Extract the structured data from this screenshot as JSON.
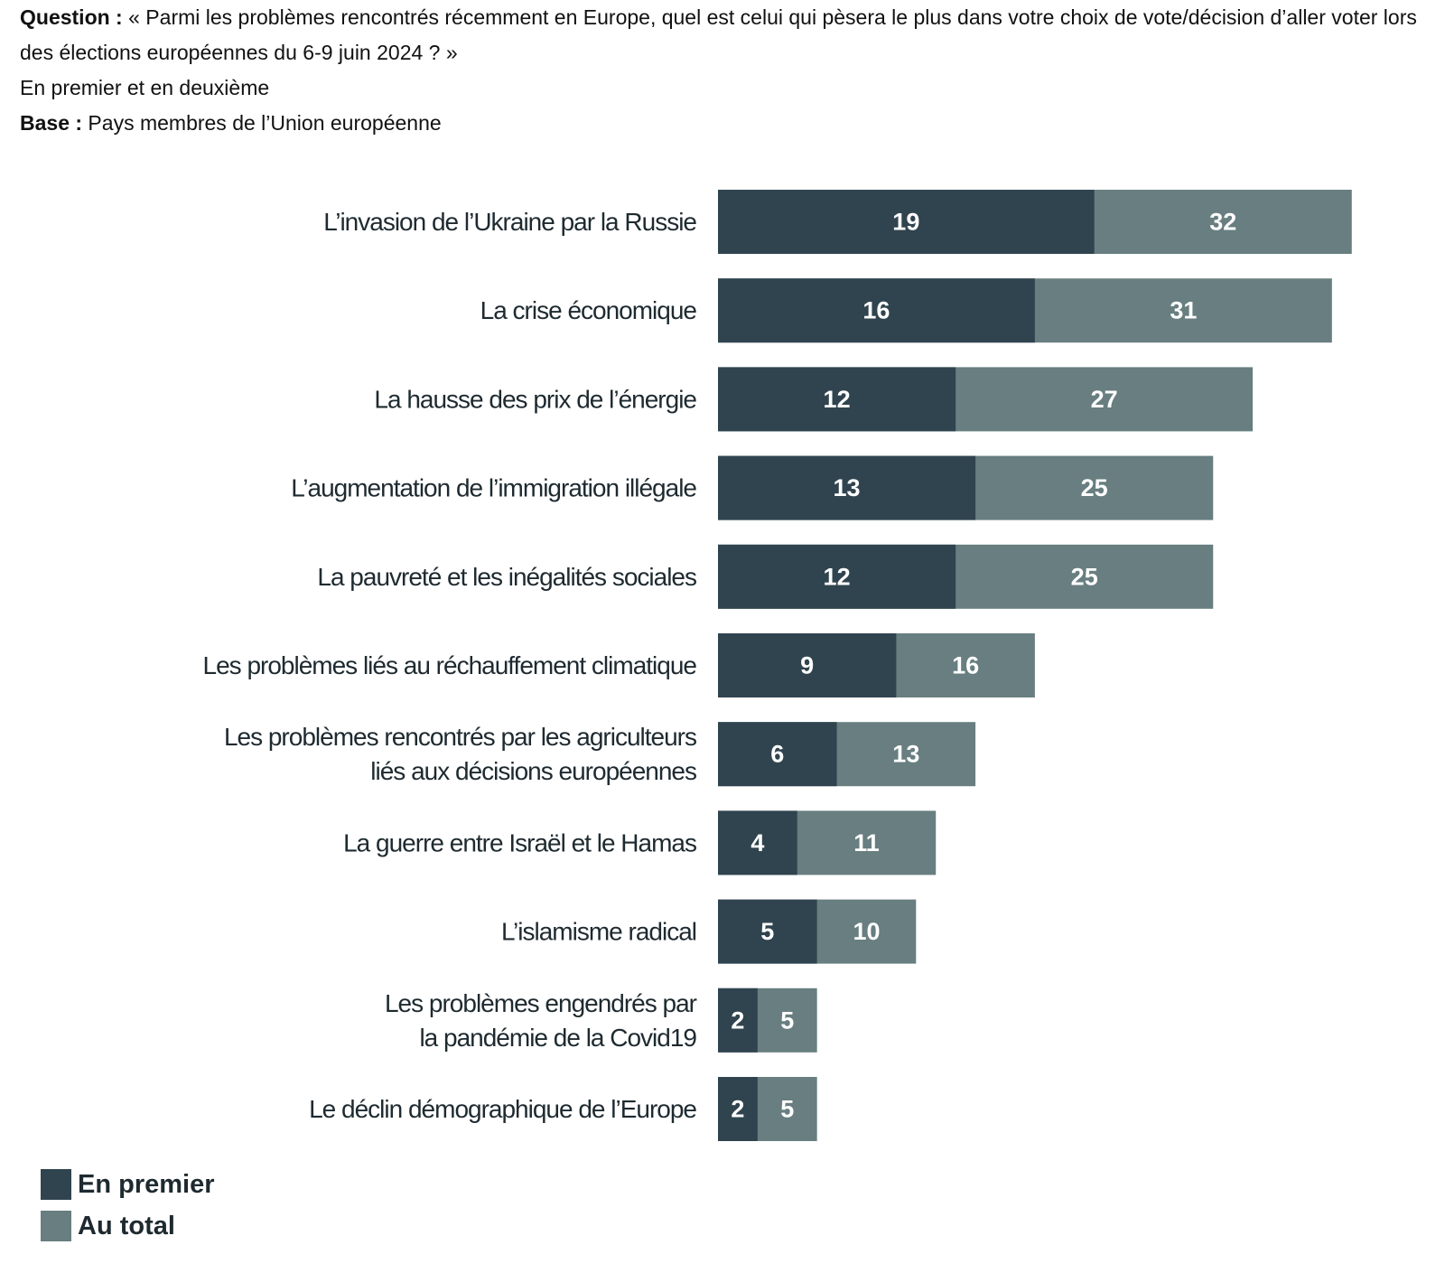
{
  "header": {
    "question_label": "Question :",
    "question_text": " « Parmi les problèmes rencontrés récemment en Europe, quel est celui qui pèsera le plus dans votre choix de vote/décision d’aller voter lors des élections européennes du 6-9 juin 2024 ? »",
    "subtitle": "En premier et en deuxième",
    "base_label": "Base :",
    "base_text": " Pays membres de l’Union européenne"
  },
  "chart_data": {
    "type": "bar",
    "orientation": "horizontal",
    "stacked": true,
    "categories": [
      "L’invasion de l’Ukraine par la Russie",
      "La crise économique",
      "La hausse des prix de l’énergie",
      "L’augmentation de l’immigration illégale",
      "La pauvreté et les inégalités sociales",
      "Les problèmes liés au réchauffement climatique",
      "Les problèmes rencontrés par les agriculteurs liés aux décisions européennes",
      "La guerre entre Israël et le Hamas",
      "L’islamisme radical",
      "Les problèmes engendrés par la pandémie de la Covid19",
      "Le déclin démographique de l’Europe"
    ],
    "series": [
      {
        "name": "En premier",
        "color": "#30444f",
        "values": [
          19,
          16,
          12,
          13,
          12,
          9,
          6,
          4,
          5,
          2,
          2
        ]
      },
      {
        "name": "Au total",
        "color": "#687e80",
        "values": [
          32,
          31,
          27,
          25,
          25,
          16,
          13,
          11,
          10,
          5,
          5
        ]
      }
    ],
    "legend_position": "bottom-left",
    "grid": false
  }
}
